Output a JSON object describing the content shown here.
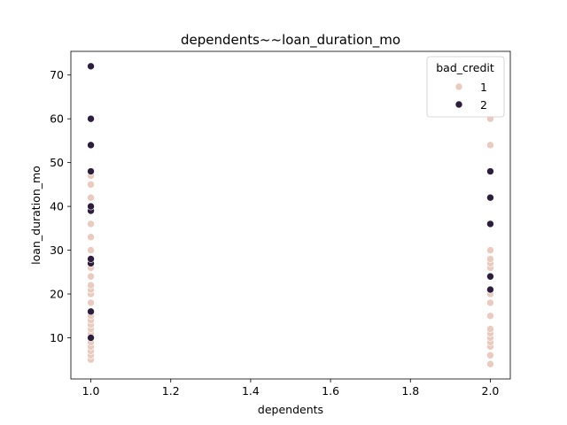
{
  "chart_data": {
    "type": "scatter",
    "title": "dependents~~loan_duration_mo",
    "xlabel": "dependents",
    "ylabel": "loan_duration_mo",
    "xlim": [
      0.95,
      2.05
    ],
    "ylim": [
      0.6,
      75.4
    ],
    "xticks": [
      1.0,
      1.2,
      1.4,
      1.6,
      1.8,
      2.0
    ],
    "xtick_labels": [
      "1.0",
      "1.2",
      "1.4",
      "1.6",
      "1.8",
      "2.0"
    ],
    "yticks": [
      10,
      20,
      30,
      40,
      50,
      60,
      70
    ],
    "ytick_labels": [
      "10",
      "20",
      "30",
      "40",
      "50",
      "60",
      "70"
    ],
    "grid": false,
    "legend": {
      "title": "bad_credit",
      "placement": "top-right"
    },
    "series": [
      {
        "name": "1",
        "color": "#ebcac0",
        "points": [
          [
            1,
            5
          ],
          [
            1,
            6
          ],
          [
            1,
            7
          ],
          [
            1,
            8
          ],
          [
            1,
            9
          ],
          [
            1,
            10
          ],
          [
            1,
            11
          ],
          [
            1,
            12
          ],
          [
            1,
            13
          ],
          [
            1,
            14
          ],
          [
            1,
            15
          ],
          [
            1,
            16
          ],
          [
            1,
            18
          ],
          [
            1,
            20
          ],
          [
            1,
            21
          ],
          [
            1,
            22
          ],
          [
            1,
            24
          ],
          [
            1,
            26
          ],
          [
            1,
            27
          ],
          [
            1,
            28
          ],
          [
            1,
            30
          ],
          [
            1,
            33
          ],
          [
            1,
            36
          ],
          [
            1,
            39
          ],
          [
            1,
            40
          ],
          [
            1,
            42
          ],
          [
            1,
            45
          ],
          [
            1,
            47
          ],
          [
            1,
            48
          ],
          [
            1,
            54
          ],
          [
            1,
            60
          ],
          [
            2,
            4
          ],
          [
            2,
            6
          ],
          [
            2,
            8
          ],
          [
            2,
            9
          ],
          [
            2,
            10
          ],
          [
            2,
            11
          ],
          [
            2,
            12
          ],
          [
            2,
            15
          ],
          [
            2,
            18
          ],
          [
            2,
            20
          ],
          [
            2,
            21
          ],
          [
            2,
            24
          ],
          [
            2,
            26
          ],
          [
            2,
            27
          ],
          [
            2,
            28
          ],
          [
            2,
            30
          ],
          [
            2,
            36
          ],
          [
            2,
            48
          ],
          [
            2,
            54
          ],
          [
            2,
            60
          ]
        ]
      },
      {
        "name": "2",
        "color": "#2d1e3e",
        "points": [
          [
            1,
            10
          ],
          [
            1,
            16
          ],
          [
            1,
            27
          ],
          [
            1,
            28
          ],
          [
            1,
            39
          ],
          [
            1,
            40
          ],
          [
            1,
            48
          ],
          [
            1,
            54
          ],
          [
            1,
            60
          ],
          [
            1,
            72
          ],
          [
            2,
            21
          ],
          [
            2,
            24
          ],
          [
            2,
            36
          ],
          [
            2,
            42
          ],
          [
            2,
            48
          ]
        ]
      }
    ]
  }
}
